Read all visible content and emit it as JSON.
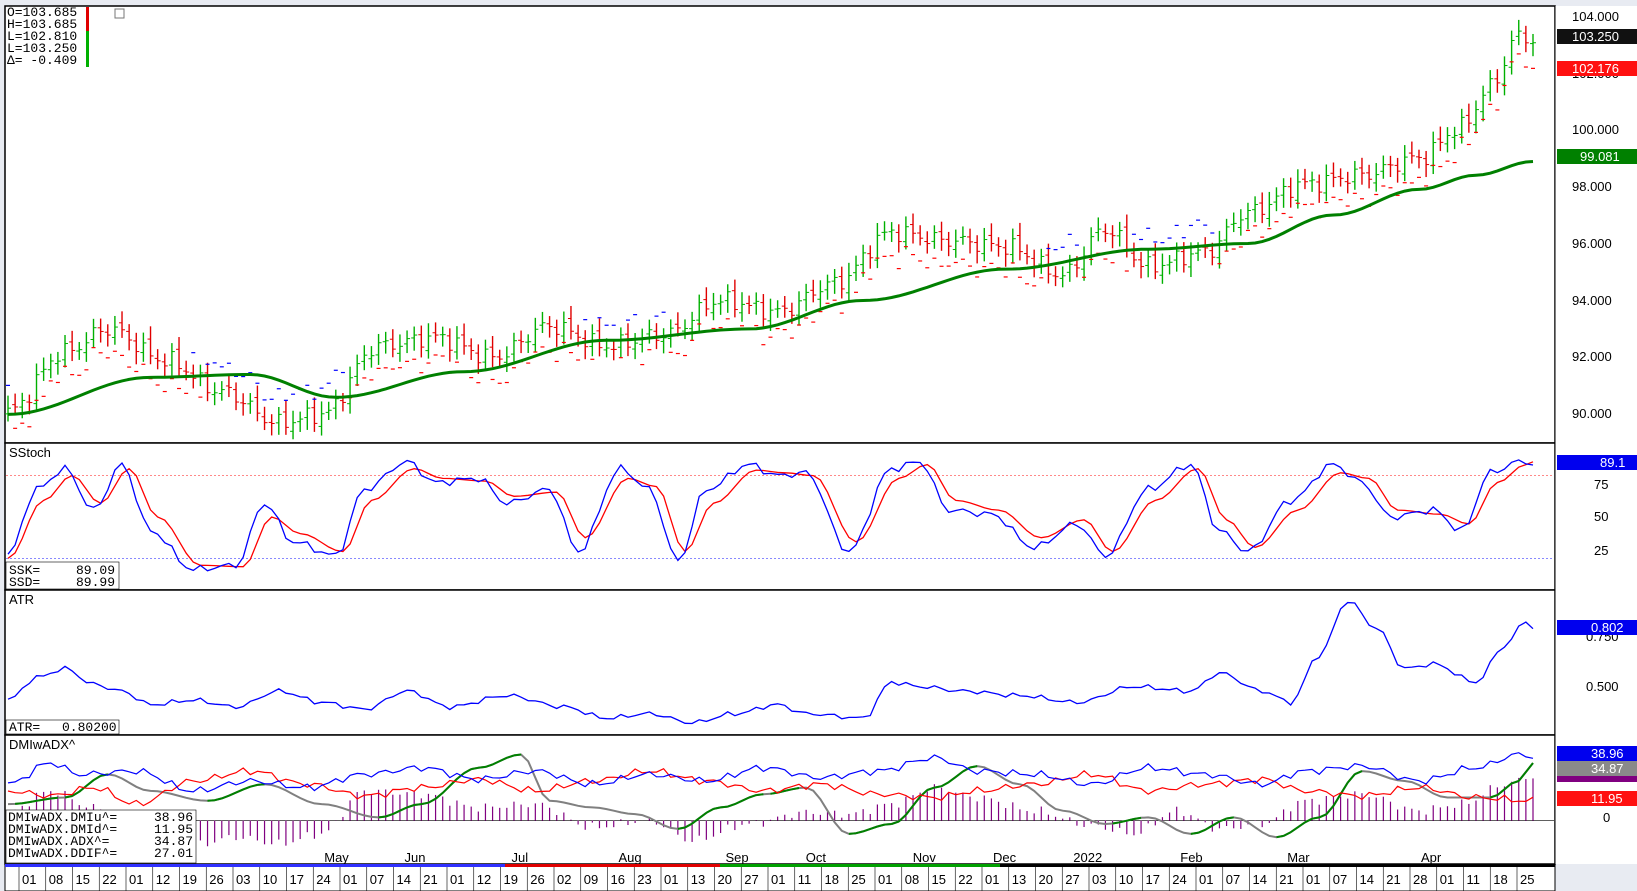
{
  "chart_data": [
    {
      "type": "candlestick",
      "title": "",
      "ohlc": {
        "O": "103.685",
        "H": "103.685",
        "L1": "102.810",
        "L2": "103.250",
        "delta": "-0.409"
      },
      "labels": {
        "o": "O=103.685",
        "h": "H=103.685",
        "l1": "L=102.810",
        "l2": "L=103.250",
        "d": "Δ= -0.409"
      },
      "ylim": [
        89.3,
        104.4
      ],
      "yticks": [
        "104.000",
        "102.000",
        "100.000",
        "98.000",
        "96.000",
        "94.000",
        "92.000",
        "90.000"
      ],
      "last_price": "103.250",
      "stop_price": "102.176",
      "ma_price": "99.081",
      "close_anchors": [
        [
          0,
          90.3
        ],
        [
          8,
          92.4
        ],
        [
          14,
          93.2
        ],
        [
          22,
          92.1
        ],
        [
          30,
          91.0
        ],
        [
          38,
          89.9
        ],
        [
          44,
          90.2
        ],
        [
          52,
          92.6
        ],
        [
          60,
          92.9
        ],
        [
          68,
          92.2
        ],
        [
          76,
          93.3
        ],
        [
          84,
          92.6
        ],
        [
          92,
          93.0
        ],
        [
          100,
          94.2
        ],
        [
          108,
          93.8
        ],
        [
          116,
          94.8
        ],
        [
          124,
          96.6
        ],
        [
          132,
          96.3
        ],
        [
          140,
          96.1
        ],
        [
          148,
          95.1
        ],
        [
          154,
          96.7
        ],
        [
          160,
          95.4
        ],
        [
          168,
          95.9
        ],
        [
          174,
          97.3
        ],
        [
          182,
          98.3
        ],
        [
          190,
          98.6
        ],
        [
          198,
          99.2
        ],
        [
          204,
          100.3
        ],
        [
          208,
          101.7
        ],
        [
          212,
          103.5
        ],
        [
          214,
          103.25
        ]
      ],
      "ma_anchors": [
        [
          0,
          90.2
        ],
        [
          20,
          91.5
        ],
        [
          34,
          91.6
        ],
        [
          46,
          90.8
        ],
        [
          64,
          91.7
        ],
        [
          84,
          92.8
        ],
        [
          104,
          93.2
        ],
        [
          120,
          94.2
        ],
        [
          140,
          95.3
        ],
        [
          160,
          96.0
        ],
        [
          174,
          96.2
        ],
        [
          186,
          97.2
        ],
        [
          198,
          98.1
        ],
        [
          206,
          98.6
        ],
        [
          214,
          99.08
        ]
      ]
    },
    {
      "type": "line",
      "title": "SStoch",
      "series": [
        {
          "name": "SSK",
          "value": "89.09",
          "color": "#0000ff"
        },
        {
          "name": "SSD",
          "value": "89.99",
          "color": "#ff0000"
        }
      ],
      "labels": {
        "ssk_key": "SSK=",
        "ssd_key": "SSD="
      },
      "ylim": [
        0,
        100
      ],
      "yticks": [
        "75",
        "50",
        "25"
      ],
      "overbought": 80,
      "oversold": 20,
      "last_value": "89.1",
      "ssk_anchors": [
        [
          0,
          22
        ],
        [
          4,
          70
        ],
        [
          8,
          85
        ],
        [
          12,
          55
        ],
        [
          16,
          88
        ],
        [
          20,
          40
        ],
        [
          26,
          12
        ],
        [
          32,
          15
        ],
        [
          36,
          60
        ],
        [
          40,
          32
        ],
        [
          46,
          22
        ],
        [
          50,
          70
        ],
        [
          56,
          90
        ],
        [
          60,
          75
        ],
        [
          66,
          78
        ],
        [
          70,
          60
        ],
        [
          76,
          70
        ],
        [
          80,
          25
        ],
        [
          86,
          85
        ],
        [
          90,
          70
        ],
        [
          94,
          18
        ],
        [
          98,
          70
        ],
        [
          104,
          88
        ],
        [
          108,
          80
        ],
        [
          112,
          82
        ],
        [
          118,
          25
        ],
        [
          124,
          85
        ],
        [
          128,
          90
        ],
        [
          132,
          55
        ],
        [
          138,
          52
        ],
        [
          144,
          28
        ],
        [
          150,
          45
        ],
        [
          154,
          22
        ],
        [
          160,
          70
        ],
        [
          166,
          88
        ],
        [
          170,
          40
        ],
        [
          174,
          25
        ],
        [
          180,
          62
        ],
        [
          186,
          88
        ],
        [
          190,
          75
        ],
        [
          194,
          50
        ],
        [
          200,
          55
        ],
        [
          204,
          40
        ],
        [
          208,
          82
        ],
        [
          212,
          90
        ],
        [
          214,
          89.1
        ]
      ],
      "ssd_anchors": [
        [
          0,
          20
        ],
        [
          5,
          62
        ],
        [
          9,
          80
        ],
        [
          13,
          60
        ],
        [
          17,
          85
        ],
        [
          21,
          50
        ],
        [
          27,
          15
        ],
        [
          33,
          14
        ],
        [
          37,
          50
        ],
        [
          41,
          38
        ],
        [
          47,
          25
        ],
        [
          51,
          62
        ],
        [
          57,
          85
        ],
        [
          61,
          78
        ],
        [
          67,
          76
        ],
        [
          71,
          65
        ],
        [
          77,
          68
        ],
        [
          81,
          35
        ],
        [
          87,
          78
        ],
        [
          91,
          72
        ],
        [
          95,
          25
        ],
        [
          99,
          60
        ],
        [
          105,
          84
        ],
        [
          109,
          82
        ],
        [
          113,
          80
        ],
        [
          119,
          32
        ],
        [
          125,
          78
        ],
        [
          129,
          88
        ],
        [
          133,
          62
        ],
        [
          139,
          55
        ],
        [
          145,
          35
        ],
        [
          151,
          48
        ],
        [
          155,
          25
        ],
        [
          161,
          62
        ],
        [
          167,
          85
        ],
        [
          171,
          48
        ],
        [
          175,
          28
        ],
        [
          181,
          55
        ],
        [
          187,
          82
        ],
        [
          191,
          78
        ],
        [
          195,
          55
        ],
        [
          201,
          52
        ],
        [
          205,
          45
        ],
        [
          209,
          75
        ],
        [
          213,
          88
        ],
        [
          214,
          89.99
        ]
      ]
    },
    {
      "type": "line",
      "title": "ATR",
      "series": [
        {
          "name": "ATR",
          "value": "0.80200",
          "color": "#0000ff"
        }
      ],
      "labels": {
        "key": "ATR="
      },
      "ylim": [
        0.33,
        0.95
      ],
      "yticks": [
        "0.750",
        "0.500"
      ],
      "last_value": "0.802",
      "anchors": [
        [
          0,
          0.48
        ],
        [
          4,
          0.58
        ],
        [
          8,
          0.62
        ],
        [
          12,
          0.55
        ],
        [
          16,
          0.52
        ],
        [
          20,
          0.46
        ],
        [
          26,
          0.48
        ],
        [
          32,
          0.45
        ],
        [
          38,
          0.52
        ],
        [
          44,
          0.47
        ],
        [
          50,
          0.44
        ],
        [
          56,
          0.52
        ],
        [
          62,
          0.45
        ],
        [
          70,
          0.5
        ],
        [
          78,
          0.45
        ],
        [
          84,
          0.4
        ],
        [
          90,
          0.42
        ],
        [
          96,
          0.38
        ],
        [
          102,
          0.42
        ],
        [
          108,
          0.46
        ],
        [
          112,
          0.42
        ],
        [
          120,
          0.4
        ],
        [
          124,
          0.56
        ],
        [
          128,
          0.54
        ],
        [
          134,
          0.52
        ],
        [
          142,
          0.5
        ],
        [
          150,
          0.47
        ],
        [
          158,
          0.54
        ],
        [
          166,
          0.52
        ],
        [
          170,
          0.6
        ],
        [
          176,
          0.52
        ],
        [
          180,
          0.47
        ],
        [
          184,
          0.68
        ],
        [
          188,
          0.92
        ],
        [
          192,
          0.8
        ],
        [
          196,
          0.62
        ],
        [
          200,
          0.64
        ],
        [
          206,
          0.56
        ],
        [
          210,
          0.72
        ],
        [
          213,
          0.83
        ],
        [
          214,
          0.802
        ]
      ]
    },
    {
      "type": "line",
      "title": "DMIwADX^",
      "series": [
        {
          "name": "DMIwADX.DMIu^",
          "value": "38.96",
          "color": "#0000ff"
        },
        {
          "name": "DMIwADX.DMId^",
          "value": "11.95",
          "color": "#ff0000"
        },
        {
          "name": "DMIwADX.ADX^",
          "value": "34.87",
          "color": "#808080"
        },
        {
          "name": "DMIwADX.DDIF^",
          "value": "27.01",
          "color": "#800080"
        }
      ],
      "labels": {
        "u": "DMIwADX.DMIu^=",
        "d": "DMIwADX.DMId^=",
        "adx": "DMIwADX.ADX^=",
        "ddif": "DMIwADX.DDIF^="
      },
      "ylim": [
        -25,
        50
      ],
      "yticks": [
        "0"
      ],
      "up_anchors": [
        [
          0,
          22
        ],
        [
          6,
          35
        ],
        [
          10,
          28
        ],
        [
          18,
          30
        ],
        [
          26,
          18
        ],
        [
          34,
          24
        ],
        [
          42,
          20
        ],
        [
          50,
          28
        ],
        [
          58,
          32
        ],
        [
          66,
          25
        ],
        [
          74,
          30
        ],
        [
          82,
          22
        ],
        [
          90,
          28
        ],
        [
          98,
          24
        ],
        [
          106,
          32
        ],
        [
          114,
          26
        ],
        [
          122,
          30
        ],
        [
          130,
          38
        ],
        [
          136,
          30
        ],
        [
          144,
          28
        ],
        [
          152,
          22
        ],
        [
          160,
          32
        ],
        [
          168,
          28
        ],
        [
          176,
          22
        ],
        [
          182,
          30
        ],
        [
          190,
          33
        ],
        [
          198,
          24
        ],
        [
          206,
          32
        ],
        [
          212,
          40
        ],
        [
          214,
          38.96
        ]
      ],
      "dn_anchors": [
        [
          0,
          18
        ],
        [
          6,
          15
        ],
        [
          12,
          20
        ],
        [
          18,
          10
        ],
        [
          26,
          24
        ],
        [
          34,
          30
        ],
        [
          42,
          22
        ],
        [
          50,
          15
        ],
        [
          58,
          20
        ],
        [
          66,
          25
        ],
        [
          74,
          18
        ],
        [
          82,
          24
        ],
        [
          90,
          30
        ],
        [
          98,
          24
        ],
        [
          106,
          18
        ],
        [
          114,
          22
        ],
        [
          122,
          16
        ],
        [
          130,
          14
        ],
        [
          136,
          18
        ],
        [
          144,
          22
        ],
        [
          152,
          28
        ],
        [
          160,
          18
        ],
        [
          168,
          22
        ],
        [
          176,
          25
        ],
        [
          182,
          18
        ],
        [
          190,
          15
        ],
        [
          198,
          20
        ],
        [
          206,
          14
        ],
        [
          214,
          11.95
        ]
      ],
      "adx_anchors": [
        [
          0,
          10
        ],
        [
          8,
          14
        ],
        [
          14,
          28
        ],
        [
          20,
          18
        ],
        [
          28,
          12
        ],
        [
          36,
          22
        ],
        [
          44,
          10
        ],
        [
          52,
          2
        ],
        [
          58,
          10
        ],
        [
          66,
          32
        ],
        [
          72,
          40
        ],
        [
          76,
          12
        ],
        [
          82,
          8
        ],
        [
          88,
          4
        ],
        [
          94,
          -5
        ],
        [
          100,
          8
        ],
        [
          106,
          16
        ],
        [
          112,
          20
        ],
        [
          118,
          -8
        ],
        [
          124,
          -2
        ],
        [
          130,
          20
        ],
        [
          136,
          33
        ],
        [
          142,
          22
        ],
        [
          148,
          6
        ],
        [
          154,
          -2
        ],
        [
          160,
          2
        ],
        [
          166,
          -8
        ],
        [
          172,
          2
        ],
        [
          178,
          -10
        ],
        [
          184,
          2
        ],
        [
          190,
          30
        ],
        [
          196,
          24
        ],
        [
          202,
          14
        ],
        [
          208,
          14
        ],
        [
          212,
          24
        ],
        [
          214,
          34.87
        ]
      ],
      "ddif_anchors": [
        [
          0,
          5
        ],
        [
          6,
          18
        ],
        [
          12,
          8
        ],
        [
          18,
          -6
        ],
        [
          26,
          -15
        ],
        [
          32,
          -10
        ],
        [
          38,
          -14
        ],
        [
          44,
          -8
        ],
        [
          50,
          18
        ],
        [
          58,
          16
        ],
        [
          66,
          8
        ],
        [
          74,
          10
        ],
        [
          82,
          -4
        ],
        [
          90,
          0
        ],
        [
          96,
          -12
        ],
        [
          104,
          -2
        ],
        [
          112,
          5
        ],
        [
          118,
          4
        ],
        [
          124,
          10
        ],
        [
          130,
          20
        ],
        [
          136,
          14
        ],
        [
          144,
          6
        ],
        [
          152,
          -3
        ],
        [
          158,
          -8
        ],
        [
          164,
          6
        ],
        [
          170,
          -5
        ],
        [
          176,
          -2
        ],
        [
          182,
          12
        ],
        [
          190,
          16
        ],
        [
          198,
          6
        ],
        [
          204,
          10
        ],
        [
          210,
          22
        ],
        [
          214,
          27.01
        ]
      ]
    }
  ],
  "x_axis": {
    "months": [
      "May",
      "Jun",
      "Jul",
      "Aug",
      "Sep",
      "Oct",
      "Nov",
      "Dec",
      "2022",
      "Feb",
      "Mar",
      "Apr"
    ],
    "days": [
      "01",
      "08",
      "15",
      "22",
      "01",
      "12",
      "19",
      "26",
      "03",
      "10",
      "17",
      "24",
      "01",
      "07",
      "14",
      "21",
      "01",
      "12",
      "19",
      "26",
      "02",
      "09",
      "16",
      "23",
      "01",
      "13",
      "20",
      "27",
      "01",
      "11",
      "18",
      "25",
      "01",
      "08",
      "15",
      "22",
      "01",
      "13",
      "20",
      "27",
      "03",
      "10",
      "17",
      "24",
      "01",
      "07",
      "14",
      "21",
      "01",
      "07",
      "14",
      "21",
      "28",
      "01",
      "11",
      "18",
      "25"
    ]
  },
  "colors": {
    "up_bar": "#00b000",
    "down_bar": "#e00000",
    "ma": "#008000",
    "stop_up": "#ff0000",
    "stop_down": "#0000ff",
    "bg": "#ffffff",
    "frame": "#000000"
  }
}
